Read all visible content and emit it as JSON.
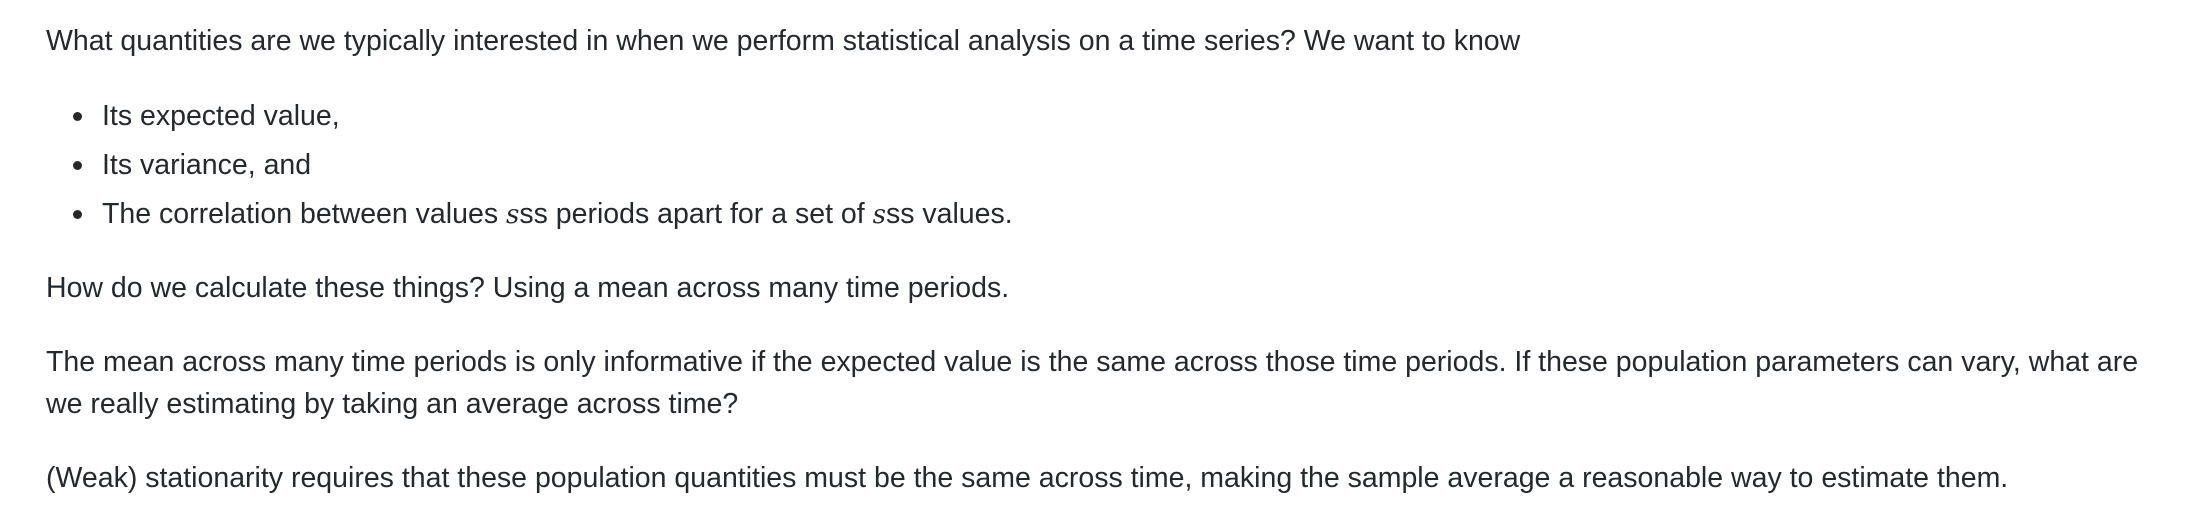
{
  "intro": "What quantities are we typically interested in when we perform statistical analysis on a time series? We want to know",
  "list": {
    "item1": "Its expected value,",
    "item2": "Its variance, and",
    "item3": {
      "part1": "The correlation between values ",
      "math1": "s",
      "part2": "ss periods apart for a set of ",
      "math2": "s",
      "part3": "ss values."
    }
  },
  "how": "How do we calculate these things? Using a mean across many time periods.",
  "mean_para": "The mean across many time periods is only informative if the expected value is the same across those time periods. If these population parameters can vary, what are we really estimating by taking an average across time?",
  "weak_para": "(Weak) stationarity requires that these population quantities must be the same across time, making the sample average a reasonable way to estimate them."
}
